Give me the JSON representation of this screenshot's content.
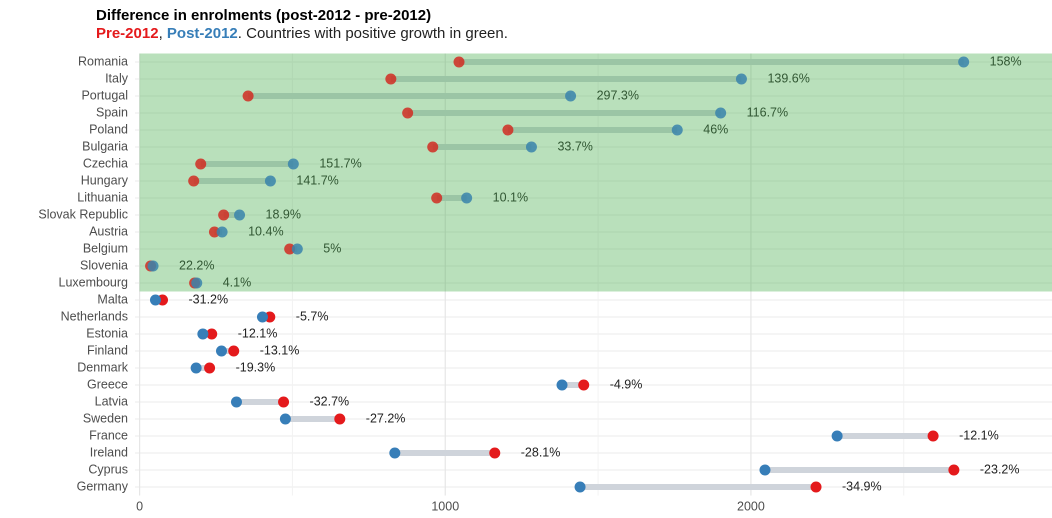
{
  "chart_data": {
    "type": "dumbbell",
    "title": "Difference in enrolments (post-2012 - pre-2012)",
    "subtitle_joiners": [
      ", ",
      ". Countries with positive growth in green."
    ],
    "categories": [
      "Romania",
      "Italy",
      "Portugal",
      "Spain",
      "Poland",
      "Bulgaria",
      "Czechia",
      "Hungary",
      "Lithuania",
      "Slovak Republic",
      "Austria",
      "Belgium",
      "Slovenia",
      "Luxembourg",
      "Malta",
      "Netherlands",
      "Estonia",
      "Finland",
      "Denmark",
      "Greece",
      "Latvia",
      "Sweden",
      "France",
      "Ireland",
      "Cyprus",
      "Germany"
    ],
    "series": [
      {
        "name": "Pre-2012",
        "color": "#e41a1c",
        "values": [
          1045,
          822,
          355,
          877,
          1205,
          959,
          200,
          177,
          972,
          275,
          245,
          491,
          36,
          180,
          75,
          426,
          236,
          308,
          229,
          1453,
          471,
          655,
          2596,
          1162,
          2664,
          2213
        ]
      },
      {
        "name": "Post-2012",
        "color": "#377eb8",
        "values": [
          2696,
          1969,
          1410,
          1901,
          1759,
          1282,
          503,
          428,
          1070,
          327,
          270,
          516,
          44,
          187,
          52,
          402,
          207,
          268,
          185,
          1382,
          317,
          477,
          2282,
          835,
          2046,
          1441
        ]
      }
    ],
    "growth_labels": [
      "158%",
      "139.6%",
      "297.3%",
      "116.7%",
      "46%",
      "33.7%",
      "151.7%",
      "141.7%",
      "10.1%",
      "18.9%",
      "10.4%",
      "5%",
      "22.2%",
      "4.1%",
      "-31.2%",
      "-5.7%",
      "-12.1%",
      "-13.1%",
      "-19.3%",
      "-4.9%",
      "-32.7%",
      "-27.2%",
      "-12.1%",
      "-28.1%",
      "-23.2%",
      "-34.9%"
    ],
    "xlim": [
      -15,
      2985
    ],
    "xticks": [
      0,
      1000,
      2000
    ],
    "minor_xticks": [
      500,
      1500,
      2500
    ],
    "grid": true,
    "highlight_color": "#4caf50"
  }
}
